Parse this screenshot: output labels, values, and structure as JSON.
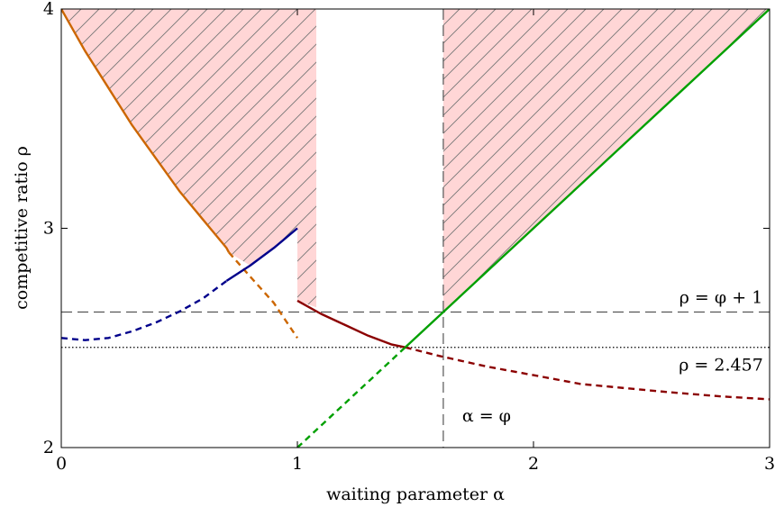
{
  "chart_data": {
    "type": "line",
    "title": "",
    "xlabel": "waiting parameter α",
    "ylabel": "competitive ratio ρ",
    "xlim": [
      0,
      3
    ],
    "ylim": [
      2,
      4
    ],
    "x_ticks": [
      "0",
      "1",
      "2",
      "3"
    ],
    "y_ticks": [
      "2",
      "3",
      "4"
    ],
    "grid": false,
    "series": [
      {
        "color": "#cc6600",
        "points_solid": [
          [
            0,
            4.0
          ],
          [
            0.1,
            3.81
          ],
          [
            0.2,
            3.64
          ],
          [
            0.3,
            3.47
          ],
          [
            0.4,
            3.32
          ],
          [
            0.5,
            3.17
          ],
          [
            0.6,
            3.04
          ],
          [
            0.7,
            2.91
          ],
          [
            0.71,
            2.89
          ]
        ],
        "points_dashed": [
          [
            0.71,
            2.89
          ],
          [
            0.8,
            2.78
          ],
          [
            0.9,
            2.66
          ],
          [
            1.0,
            2.5
          ]
        ]
      },
      {
        "color": "#00008b",
        "points_dashed": [
          [
            0,
            2.5
          ],
          [
            0.1,
            2.49
          ],
          [
            0.2,
            2.5
          ],
          [
            0.3,
            2.53
          ],
          [
            0.4,
            2.57
          ],
          [
            0.5,
            2.62
          ],
          [
            0.6,
            2.68
          ],
          [
            0.7,
            2.76
          ]
        ],
        "points_solid": [
          [
            0.7,
            2.76
          ],
          [
            0.8,
            2.83
          ],
          [
            0.9,
            2.91
          ],
          [
            1.0,
            3.0
          ]
        ]
      },
      {
        "color": "#8b0000",
        "points_solid": [
          [
            1.0,
            2.67
          ],
          [
            1.1,
            2.61
          ],
          [
            1.2,
            2.56
          ],
          [
            1.3,
            2.51
          ],
          [
            1.4,
            2.47
          ],
          [
            1.457,
            2.457
          ]
        ],
        "points_dashed": [
          [
            1.457,
            2.457
          ],
          [
            1.6,
            2.418
          ],
          [
            1.8,
            2.37
          ],
          [
            2.0,
            2.33
          ],
          [
            2.2,
            2.29
          ],
          [
            2.4,
            2.27
          ],
          [
            2.6,
            2.25
          ],
          [
            2.8,
            2.233
          ],
          [
            3.0,
            2.22
          ]
        ]
      },
      {
        "color": "#00a000",
        "points_dashed": [
          [
            1.0,
            2.0
          ],
          [
            1.457,
            2.457
          ]
        ],
        "points_solid": [
          [
            1.457,
            2.457
          ],
          [
            1.618,
            2.618
          ],
          [
            3.0,
            4.0
          ]
        ]
      }
    ],
    "reference_lines": [
      {
        "orientation": "horizontal",
        "value": 2.618,
        "style": "dashed",
        "label": "ρ = φ + 1"
      },
      {
        "orientation": "horizontal",
        "value": 2.457,
        "style": "dotted",
        "label": "ρ = 2.457"
      },
      {
        "orientation": "vertical",
        "value": 1.618,
        "style": "dashed",
        "label": "α = φ"
      }
    ],
    "shaded_regions": [
      {
        "fill": "#ffd6d6",
        "hatch": "north east lines",
        "x_range": [
          0,
          1.08
        ],
        "description_bound": "above orange curve (x<1), above 2.67 (1<x<1.08)"
      },
      {
        "fill": "#ffd6d6",
        "hatch": "north east lines",
        "x_range": [
          1.618,
          3
        ],
        "description_bound": "above green line"
      }
    ]
  }
}
